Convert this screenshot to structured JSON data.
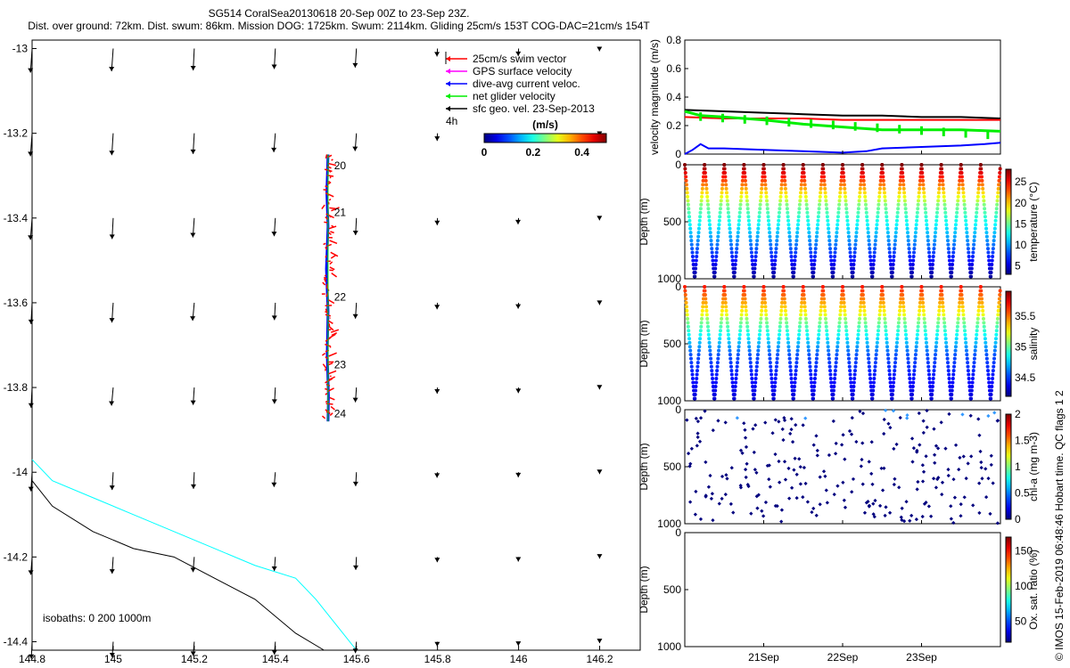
{
  "header": {
    "line1": "SG514 CoralSea20130618 20-Sep 00Z to 23-Sep 23Z.",
    "line2": "Dist. over ground: 72km. Dist. swum: 86km. Mission DOG: 1725km. Swum: 2114km. Gliding 25cm/s 153T COG-DAC=21cm/s 154T"
  },
  "chart_data": [
    {
      "type": "scatter",
      "name": "map",
      "xlim": [
        144.8,
        146.3
      ],
      "ylim": [
        -14.42,
        -12.98
      ],
      "xticks": [
        144.8,
        145,
        145.2,
        145.4,
        145.6,
        145.8,
        146,
        146.2
      ],
      "yticks": [
        -13,
        -13.2,
        -13.4,
        -13.6,
        -13.8,
        -14,
        -14.2,
        -14.4
      ],
      "xtick_labels": [
        "144.8",
        "145",
        "145.2",
        "145.4",
        "145.6",
        "145.8",
        "146",
        "146.2"
      ],
      "ytick_labels": [
        "-13",
        "-13.2",
        "-13.4",
        "-13.6",
        "-13.8",
        "-14",
        "-14.2",
        "-14.4"
      ],
      "legend": {
        "position": "top-right",
        "entries": [
          {
            "label": "25cm/s swim vector",
            "color": "#ff0000"
          },
          {
            "label": "GPS surface velocity",
            "color": "#ff00ff"
          },
          {
            "label": "dive-avg current veloc.",
            "color": "#0000ff"
          },
          {
            "label": "net glider velocity",
            "color": "#00ee00"
          },
          {
            "label": "sfc geo. vel. 23-Sep-2013",
            "color": "#000000"
          }
        ],
        "arrow_label": "4h"
      },
      "colorbar": {
        "label": "(m/s)",
        "ticks": [
          "0",
          "0.2",
          "0.4"
        ],
        "range": [
          0,
          0.5
        ]
      },
      "track": {
        "lon": [
          145.53,
          145.527,
          145.53,
          145.526,
          145.53,
          145.528,
          145.531,
          145.53
        ],
        "lat": [
          -13.25,
          -13.34,
          -13.42,
          -13.52,
          -13.62,
          -13.72,
          -13.82,
          -13.88
        ]
      },
      "day_labels": [
        {
          "text": "20",
          "lon": 145.545,
          "lat": -13.285
        },
        {
          "text": "21",
          "lon": 145.545,
          "lat": -13.395
        },
        {
          "text": "22",
          "lon": 145.545,
          "lat": -13.595
        },
        {
          "text": "23",
          "lon": 145.545,
          "lat": -13.755
        },
        {
          "text": "24",
          "lon": 145.545,
          "lat": -13.87
        }
      ],
      "isobaths_label": "isobaths: 0   200  1000m",
      "isobath_200": {
        "color": "#00ffff",
        "lon": [
          144.8,
          144.85,
          144.95,
          145.05,
          145.15,
          145.25,
          145.35,
          145.45,
          145.5,
          145.55,
          145.6
        ],
        "lat": [
          -13.97,
          -14.02,
          -14.06,
          -14.1,
          -14.14,
          -14.18,
          -14.22,
          -14.25,
          -14.3,
          -14.36,
          -14.42
        ]
      },
      "isobath_1000": {
        "color": "#000000",
        "lon": [
          144.8,
          144.85,
          144.95,
          145.05,
          145.15,
          145.25,
          145.35,
          145.45,
          145.52
        ],
        "lat": [
          -14.02,
          -14.08,
          -14.14,
          -14.18,
          -14.2,
          -14.25,
          -14.3,
          -14.38,
          -14.42
        ]
      }
    },
    {
      "type": "line",
      "name": "velocity",
      "ylabel": "velocity magnitude (m/s)",
      "x_unit": "days",
      "xlim": [
        20.0,
        24.0
      ],
      "ylim": [
        0,
        0.8
      ],
      "yticks": [
        0,
        0.2,
        0.4,
        0.6,
        0.8
      ],
      "ytick_labels": [
        "0",
        "0.2",
        "0.4",
        "0.6",
        "0.8"
      ],
      "series": [
        {
          "color": "#000000",
          "x": [
            20.0,
            20.5,
            21.0,
            21.5,
            22.0,
            22.5,
            23.0,
            23.5,
            24.0
          ],
          "y": [
            0.31,
            0.3,
            0.29,
            0.28,
            0.27,
            0.27,
            0.26,
            0.26,
            0.25
          ]
        },
        {
          "color": "#ff0000",
          "x": [
            20.0,
            20.5,
            21.0,
            21.5,
            22.0,
            22.5,
            23.0,
            23.5,
            24.0
          ],
          "y": [
            0.26,
            0.25,
            0.25,
            0.25,
            0.24,
            0.24,
            0.24,
            0.24,
            0.24
          ]
        },
        {
          "color": "#00ee00",
          "x": [
            20.0,
            20.2,
            20.5,
            21.0,
            21.5,
            22.0,
            22.5,
            23.0,
            23.5,
            24.0
          ],
          "y": [
            0.3,
            0.27,
            0.26,
            0.24,
            0.21,
            0.19,
            0.17,
            0.17,
            0.17,
            0.16
          ]
        },
        {
          "color": "#0000ff",
          "x": [
            20.0,
            20.1,
            20.2,
            20.3,
            20.5,
            21.0,
            21.5,
            22.0,
            22.3,
            22.5,
            23.0,
            23.5,
            23.8,
            24.0
          ],
          "y": [
            0.0,
            0.03,
            0.07,
            0.04,
            0.04,
            0.03,
            0.02,
            0.01,
            0.02,
            0.04,
            0.05,
            0.06,
            0.07,
            0.08
          ]
        }
      ]
    },
    {
      "type": "scatter",
      "name": "temperature",
      "ylabel": "Depth (m)",
      "clabel": "temperature (°C)",
      "ylim": [
        1000,
        0
      ],
      "yticks": [
        0,
        500,
        1000
      ],
      "clim": [
        3,
        28
      ],
      "cticks": [
        5,
        10,
        15,
        20,
        25
      ],
      "profiles_per_day": 4,
      "surface_value": 28,
      "deep_value": 4.5
    },
    {
      "type": "scatter",
      "name": "salinity",
      "ylabel": "Depth (m)",
      "clabel": "salinity",
      "ylim": [
        1000,
        0
      ],
      "yticks": [
        0,
        500,
        1000
      ],
      "clim": [
        34.2,
        35.9
      ],
      "cticks": [
        34.5,
        35,
        35.5
      ],
      "profiles_per_day": 4
    },
    {
      "type": "scatter",
      "name": "chl-a",
      "ylabel": "Depth (m)",
      "clabel": "chl-a (mg m-3)",
      "ylim": [
        1000,
        0
      ],
      "yticks": [
        0,
        500,
        1000
      ],
      "clim": [
        0,
        2
      ],
      "cticks": [
        0,
        0.5,
        1,
        1.5,
        2
      ]
    },
    {
      "type": "scatter",
      "name": "oxygen",
      "ylabel": "Depth (m)",
      "clabel": "Ox. sat. ratio (%)",
      "ylim": [
        1000,
        0
      ],
      "yticks": [
        0,
        500,
        1000
      ],
      "clim": [
        20,
        170
      ],
      "cticks": [
        50,
        100,
        150
      ]
    }
  ],
  "time_axis": {
    "ticks": [
      21,
      22,
      23
    ],
    "tick_labels": [
      "21Sep",
      "22Sep",
      "23Sep"
    ]
  },
  "footer_note": "© IMOS 15-Feb-2019 06:48:46 Hobart time. QC flags 1  2"
}
